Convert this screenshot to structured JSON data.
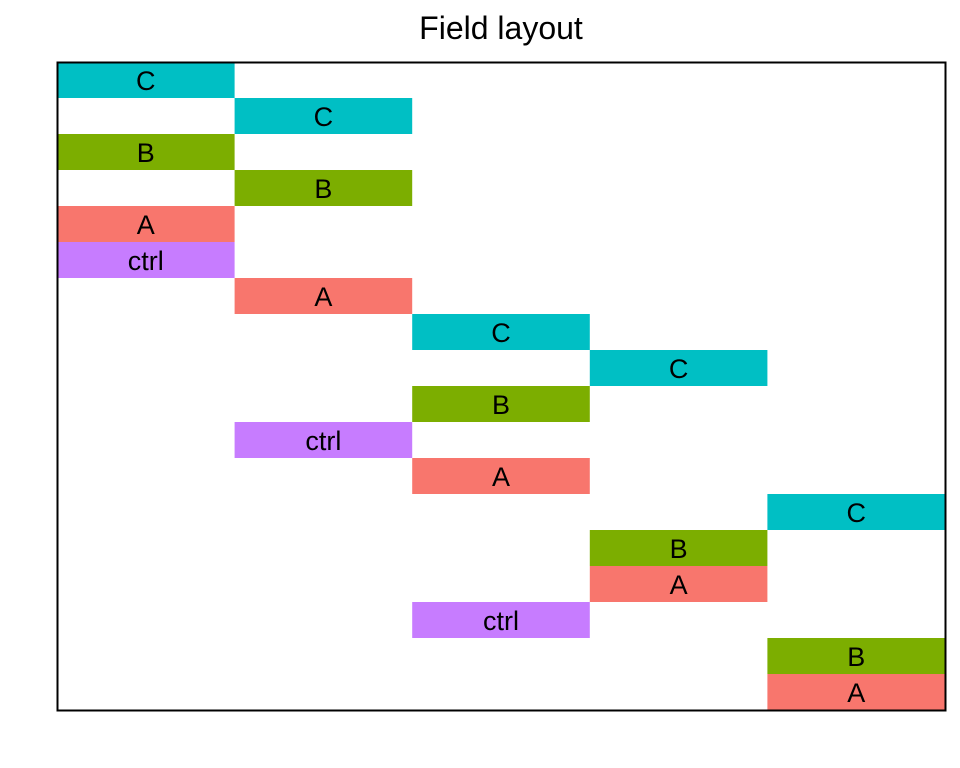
{
  "chart_data": {
    "type": "heatmap",
    "title": "Field layout",
    "n_columns": 5,
    "n_rows": 18,
    "colors": {
      "A": "#F8766D",
      "B": "#7CAE00",
      "C": "#00BFC4",
      "ctrl": "#C77CFF"
    },
    "plots": [
      {
        "col": 1,
        "row": 1,
        "label": "C"
      },
      {
        "col": 1,
        "row": 3,
        "label": "B"
      },
      {
        "col": 1,
        "row": 5,
        "label": "A"
      },
      {
        "col": 1,
        "row": 6,
        "label": "ctrl"
      },
      {
        "col": 2,
        "row": 2,
        "label": "C"
      },
      {
        "col": 2,
        "row": 4,
        "label": "B"
      },
      {
        "col": 2,
        "row": 7,
        "label": "A"
      },
      {
        "col": 2,
        "row": 11,
        "label": "ctrl"
      },
      {
        "col": 3,
        "row": 8,
        "label": "C"
      },
      {
        "col": 3,
        "row": 10,
        "label": "B"
      },
      {
        "col": 3,
        "row": 12,
        "label": "A"
      },
      {
        "col": 3,
        "row": 16,
        "label": "ctrl"
      },
      {
        "col": 4,
        "row": 9,
        "label": "C"
      },
      {
        "col": 4,
        "row": 14,
        "label": "B"
      },
      {
        "col": 4,
        "row": 15,
        "label": "A"
      },
      {
        "col": 5,
        "row": 13,
        "label": "C"
      },
      {
        "col": 5,
        "row": 17,
        "label": "B"
      },
      {
        "col": 5,
        "row": 18,
        "label": "A"
      }
    ]
  }
}
